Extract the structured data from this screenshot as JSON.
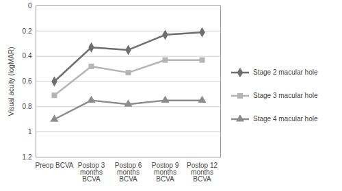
{
  "chart_data": {
    "type": "line",
    "y_label": "Visual acuity (logMAR)",
    "categories": [
      "Preop BCVA",
      "Postop 3 months BCVA",
      "Postop 6 months BCVA",
      "Postop 9 months BCVA",
      "Postop 12 months BCVA"
    ],
    "series": [
      {
        "name": "Stage 2 macular hole",
        "color": "#6e6e6e",
        "marker": "diamond",
        "values": [
          0.6,
          0.33,
          0.35,
          0.23,
          0.21
        ]
      },
      {
        "name": "Stage 3 macular hole",
        "color": "#b5b5b5",
        "marker": "square",
        "values": [
          0.71,
          0.48,
          0.53,
          0.43,
          0.43
        ]
      },
      {
        "name": "Stage 4 macular hole",
        "color": "#8c8c8c",
        "marker": "triangle",
        "values": [
          0.9,
          0.75,
          0.78,
          0.75,
          0.75
        ]
      }
    ],
    "ylim": [
      0,
      1.2
    ],
    "yticks": [
      0,
      0.2,
      0.4,
      0.6,
      0.8,
      1,
      1.2
    ],
    "grid": true,
    "legend": "right"
  }
}
